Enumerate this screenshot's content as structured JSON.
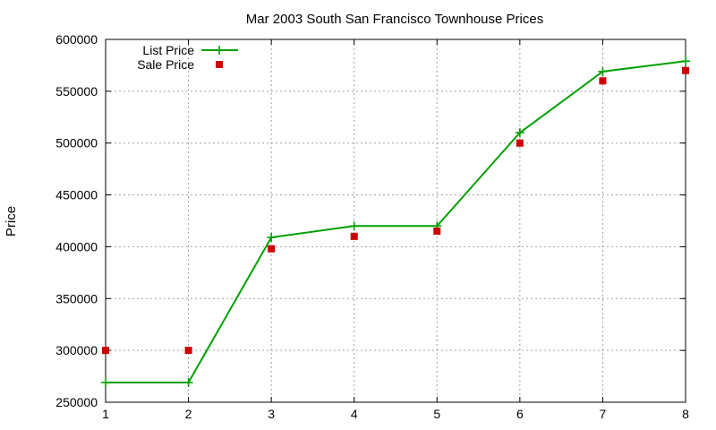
{
  "chart_data": {
    "type": "line",
    "title": "Mar 2003 South San Francisco Townhouse Prices",
    "xlabel": "",
    "ylabel": "Price",
    "xlim": [
      1,
      8
    ],
    "ylim": [
      250000,
      600000
    ],
    "xticks": [
      1,
      2,
      3,
      4,
      5,
      6,
      7,
      8
    ],
    "yticks": [
      250000,
      300000,
      350000,
      400000,
      450000,
      500000,
      550000,
      600000
    ],
    "grid": true,
    "legend_position": "top-left",
    "x": [
      1,
      2,
      3,
      4,
      5,
      6,
      7,
      8
    ],
    "series": [
      {
        "name": "List Price",
        "style": "line+points",
        "marker": "plus",
        "color": "#00a000",
        "values": [
          269000,
          269000,
          409000,
          420000,
          420000,
          510000,
          569000,
          579000
        ]
      },
      {
        "name": "Sale Price",
        "style": "points",
        "marker": "square",
        "color": "#cc0000",
        "values": [
          300000,
          300000,
          398000,
          410000,
          415000,
          500000,
          560000,
          570000
        ]
      }
    ]
  }
}
